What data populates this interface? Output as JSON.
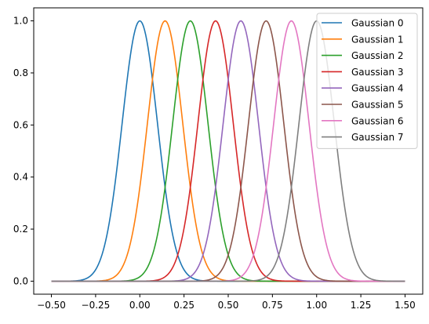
{
  "chart_data": {
    "type": "line",
    "xlim": [
      -0.6,
      1.6
    ],
    "ylim": [
      -0.05,
      1.05
    ],
    "x_ticks": [
      -0.5,
      -0.25,
      0.0,
      0.25,
      0.5,
      0.75,
      1.0,
      1.25,
      1.5
    ],
    "x_tick_labels": [
      "−0.50",
      "−0.25",
      "0.00",
      "0.25",
      "0.50",
      "0.75",
      "1.00",
      "1.25",
      "1.50"
    ],
    "y_ticks": [
      0.0,
      0.2,
      0.4,
      0.6,
      0.8,
      1.0
    ],
    "y_tick_labels": [
      "0.0",
      "0.2",
      "0.4",
      "0.6",
      "0.8",
      "1.0"
    ],
    "x_domain": [
      -0.5,
      1.5
    ],
    "sigma": 0.1,
    "grid": false,
    "legend": "top-right",
    "series": [
      {
        "name": "Gaussian 0",
        "mu": 0.0,
        "color": "#1f77b4"
      },
      {
        "name": "Gaussian 1",
        "mu": 0.1429,
        "color": "#ff7f0e"
      },
      {
        "name": "Gaussian 2",
        "mu": 0.2857,
        "color": "#2ca02c"
      },
      {
        "name": "Gaussian 3",
        "mu": 0.4286,
        "color": "#d62728"
      },
      {
        "name": "Gaussian 4",
        "mu": 0.5714,
        "color": "#9467bd"
      },
      {
        "name": "Gaussian 5",
        "mu": 0.7143,
        "color": "#8c564b"
      },
      {
        "name": "Gaussian 6",
        "mu": 0.8571,
        "color": "#e377c2"
      },
      {
        "name": "Gaussian 7",
        "mu": 1.0,
        "color": "#7f7f7f"
      }
    ]
  }
}
